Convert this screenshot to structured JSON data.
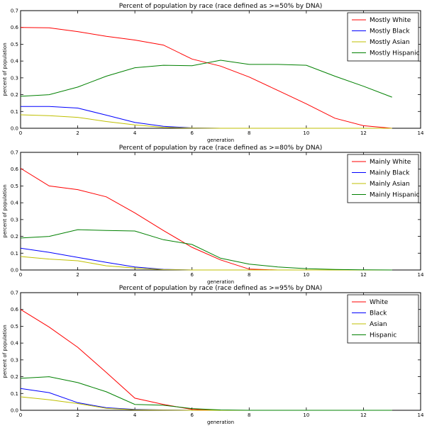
{
  "chart_data": [
    {
      "type": "line",
      "title": "Percent of population by race (race defined as >=50% by DNA)",
      "xlabel": "generation",
      "ylabel": "percent of population",
      "xlim": [
        0,
        14
      ],
      "ylim": [
        0,
        0.7
      ],
      "xticks": [
        "0",
        "2",
        "4",
        "6",
        "8",
        "10",
        "12",
        "14"
      ],
      "yticks": [
        "0.0",
        "0.1",
        "0.2",
        "0.3",
        "0.4",
        "0.5",
        "0.6",
        "0.7"
      ],
      "legend_position": "top-right",
      "grid": false,
      "x": [
        0,
        1,
        2,
        3,
        4,
        5,
        6,
        7,
        8,
        9,
        10,
        11,
        12,
        13
      ],
      "series": [
        {
          "name": "Mostly White",
          "color": "#ff0000",
          "values": [
            0.6,
            0.598,
            0.575,
            0.547,
            0.525,
            0.495,
            0.412,
            0.37,
            0.305,
            0.225,
            0.145,
            0.06,
            0.015,
            0.0
          ]
        },
        {
          "name": "Mostly Black",
          "color": "#0000ff",
          "values": [
            0.13,
            0.13,
            0.12,
            0.078,
            0.035,
            0.012,
            0.002,
            0.0,
            0.0,
            0.0,
            0.0,
            0.0,
            0.0,
            0.0
          ]
        },
        {
          "name": "Mostly Asian",
          "color": "#bfbf00",
          "values": [
            0.08,
            0.075,
            0.065,
            0.04,
            0.02,
            0.005,
            0.001,
            0.0,
            0.0,
            0.0,
            0.0,
            0.0,
            0.0,
            0.0
          ]
        },
        {
          "name": "Mostly Hispanic",
          "color": "#008000",
          "values": [
            0.19,
            0.2,
            0.245,
            0.31,
            0.36,
            0.375,
            0.372,
            0.405,
            0.38,
            0.38,
            0.375,
            0.31,
            0.25,
            0.185
          ]
        }
      ]
    },
    {
      "type": "line",
      "title": "Percent of population by race (race defined as >=80% by DNA)",
      "xlabel": "generation",
      "ylabel": "percent of population",
      "xlim": [
        0,
        14
      ],
      "ylim": [
        0,
        0.7
      ],
      "xticks": [
        "0",
        "2",
        "4",
        "6",
        "8",
        "10",
        "12",
        "14"
      ],
      "yticks": [
        "0.0",
        "0.1",
        "0.2",
        "0.3",
        "0.4",
        "0.5",
        "0.6",
        "0.7"
      ],
      "legend_position": "top-right",
      "grid": false,
      "x": [
        0,
        1,
        2,
        3,
        4,
        5,
        6,
        7,
        8,
        9,
        10,
        11,
        12,
        13
      ],
      "series": [
        {
          "name": "Mainly White",
          "color": "#ff0000",
          "values": [
            0.605,
            0.5,
            0.478,
            0.435,
            0.34,
            0.235,
            0.135,
            0.06,
            0.005,
            0.0,
            0.0,
            0.0,
            0.0,
            0.0
          ]
        },
        {
          "name": "Mainly Black",
          "color": "#0000ff",
          "values": [
            0.13,
            0.105,
            0.075,
            0.045,
            0.018,
            0.004,
            0.0,
            0.0,
            0.0,
            0.0,
            0.0,
            0.0,
            0.0,
            0.0
          ]
        },
        {
          "name": "Mainly Asian",
          "color": "#bfbf00",
          "values": [
            0.08,
            0.065,
            0.055,
            0.025,
            0.012,
            0.002,
            0.0,
            0.0,
            0.0,
            0.0,
            0.0,
            0.0,
            0.0,
            0.0
          ]
        },
        {
          "name": "Mainly Hispanic",
          "color": "#008000",
          "values": [
            0.19,
            0.2,
            0.24,
            0.235,
            0.232,
            0.18,
            0.152,
            0.07,
            0.035,
            0.018,
            0.008,
            0.003,
            0.001,
            0.0
          ]
        }
      ]
    },
    {
      "type": "line",
      "title": "Percent of population by race (race defined as >=95% by DNA)",
      "xlabel": "generation",
      "ylabel": "percent of population",
      "xlim": [
        0,
        14
      ],
      "ylim": [
        0,
        0.7
      ],
      "xticks": [
        "0",
        "2",
        "4",
        "6",
        "8",
        "10",
        "12",
        "14"
      ],
      "yticks": [
        "0.0",
        "0.1",
        "0.2",
        "0.3",
        "0.4",
        "0.5",
        "0.6",
        "0.7"
      ],
      "legend_position": "top-right",
      "grid": false,
      "x": [
        0,
        1,
        2,
        3,
        4,
        5,
        6,
        7,
        8,
        9,
        10,
        11,
        12,
        13
      ],
      "series": [
        {
          "name": "White",
          "color": "#ff0000",
          "values": [
            0.6,
            0.495,
            0.375,
            0.225,
            0.072,
            0.035,
            0.005,
            0.0,
            0.0,
            0.0,
            0.0,
            0.0,
            0.0,
            0.0
          ]
        },
        {
          "name": "Black",
          "color": "#0000ff",
          "values": [
            0.13,
            0.105,
            0.045,
            0.015,
            0.005,
            0.002,
            0.0,
            0.0,
            0.0,
            0.0,
            0.0,
            0.0,
            0.0,
            0.0
          ]
        },
        {
          "name": "Asian",
          "color": "#bfbf00",
          "values": [
            0.08,
            0.063,
            0.04,
            0.012,
            0.003,
            0.001,
            0.0,
            0.0,
            0.0,
            0.0,
            0.0,
            0.0,
            0.0,
            0.0
          ]
        },
        {
          "name": "Hispanic",
          "color": "#008000",
          "values": [
            0.19,
            0.2,
            0.165,
            0.11,
            0.035,
            0.03,
            0.01,
            0.002,
            0.0,
            0.0,
            0.0,
            0.0,
            0.0,
            0.0
          ]
        }
      ]
    }
  ]
}
